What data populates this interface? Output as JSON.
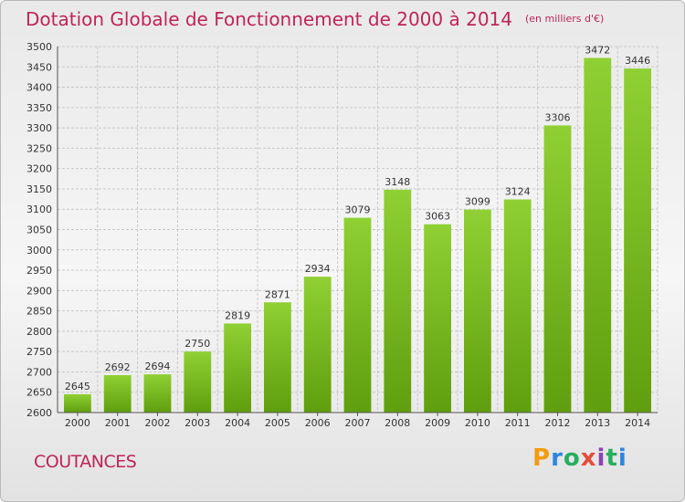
{
  "title": "Dotation Globale de Fonctionnement de 2000 à 2014",
  "unit": "(en milliers d'€)",
  "city": "COUTANCES",
  "logo": {
    "text": "Proxiti",
    "letters": [
      "P",
      "r",
      "o",
      "x",
      "i",
      "t",
      "i"
    ],
    "colors": [
      "#f39c12",
      "#2e86de",
      "#27ae60",
      "#e74c3c",
      "#8e44ad",
      "#27ae60",
      "#2e86de"
    ]
  },
  "colors": {
    "bar": "#84c42b",
    "bar_dark": "#62a010",
    "title": "#c0245a",
    "grid": "#c8c8c8"
  },
  "chart_data": {
    "type": "bar",
    "title": "Dotation Globale de Fonctionnement de 2000 à 2014",
    "categories": [
      "2000",
      "2001",
      "2002",
      "2003",
      "2004",
      "2005",
      "2006",
      "2007",
      "2008",
      "2009",
      "2010",
      "2011",
      "2012",
      "2013",
      "2014"
    ],
    "values": [
      2645,
      2692,
      2694,
      2750,
      2819,
      2871,
      2934,
      3079,
      3148,
      3063,
      3099,
      3124,
      3306,
      3472,
      3446
    ],
    "ylim": [
      2600,
      3500
    ],
    "yticks": [
      2600,
      2650,
      2700,
      2750,
      2800,
      2850,
      2900,
      2950,
      3000,
      3050,
      3100,
      3150,
      3200,
      3250,
      3300,
      3350,
      3400,
      3450,
      3500
    ],
    "grid": true,
    "xlabel": "",
    "ylabel": ""
  }
}
